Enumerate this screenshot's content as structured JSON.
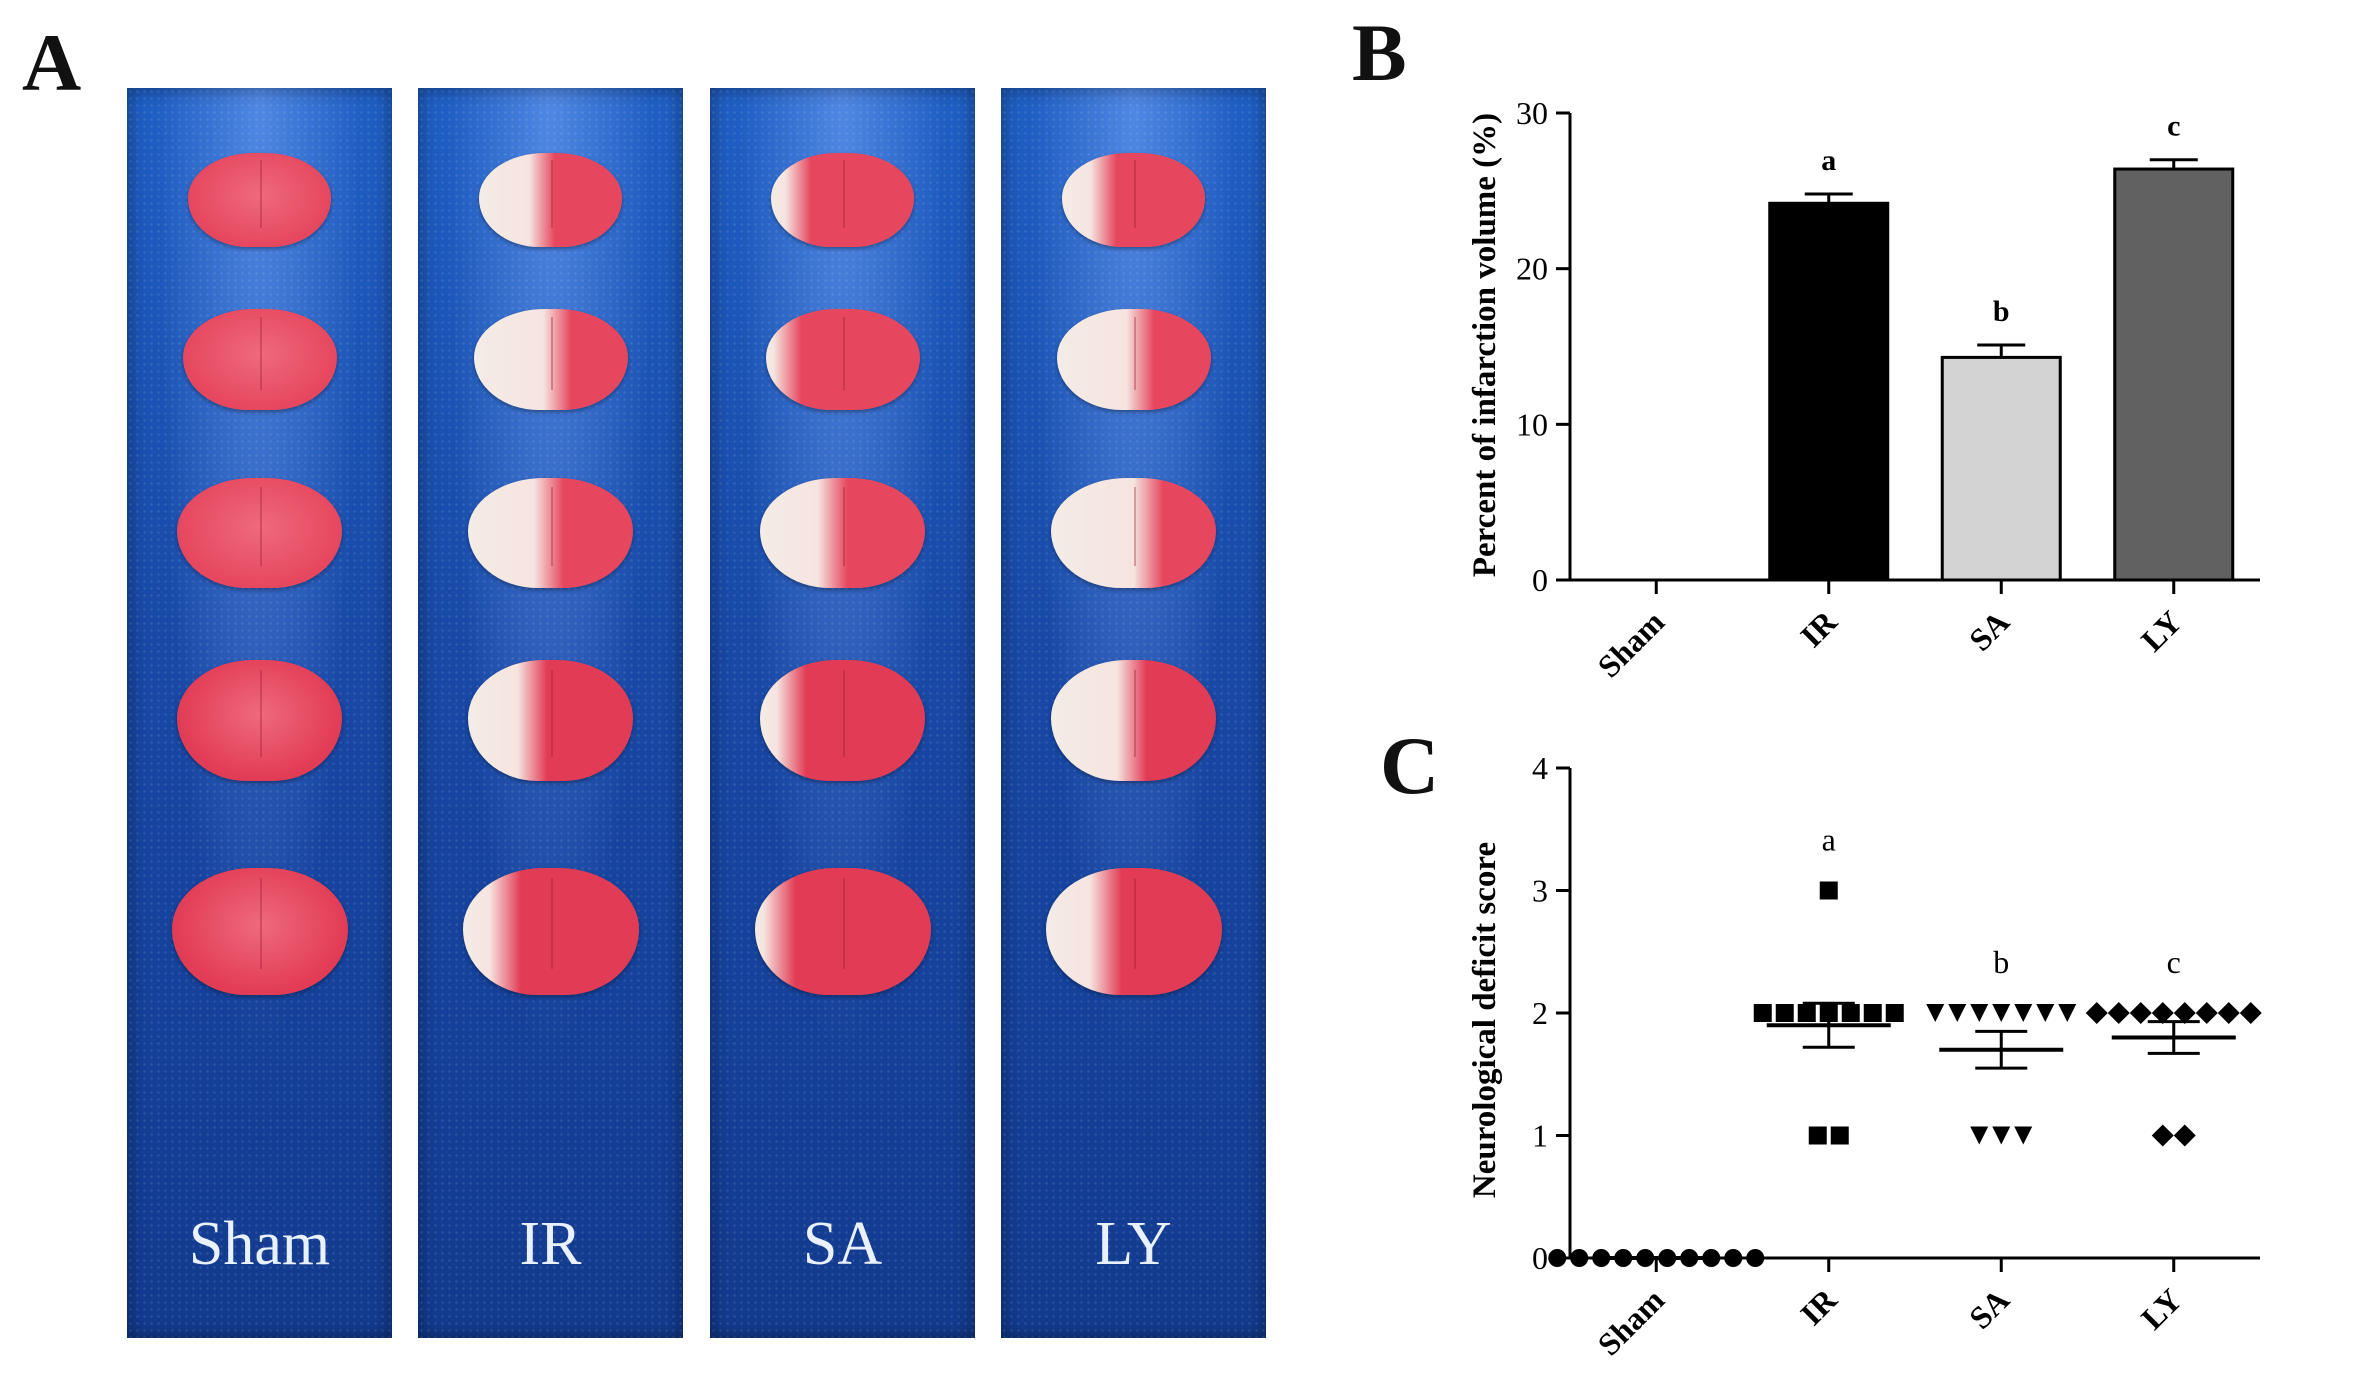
{
  "panels": {
    "a": {
      "letter": "A"
    },
    "b": {
      "letter": "B"
    },
    "c": {
      "letter": "C"
    }
  },
  "panel_a": {
    "strips": [
      {
        "label": "Sham"
      },
      {
        "label": "IR"
      },
      {
        "label": "SA"
      },
      {
        "label": "LY"
      }
    ]
  },
  "chart_data": [
    {
      "type": "bar",
      "panel": "B",
      "categories": [
        "Sham",
        "IR",
        "SA",
        "LY"
      ],
      "values": [
        0,
        24.2,
        14.3,
        26.4
      ],
      "errors": [
        0,
        0.6,
        0.8,
        0.6
      ],
      "significance": [
        "",
        "a",
        "b",
        "c"
      ],
      "bar_colors": [
        "#000000",
        "#000000",
        "#d3d3d3",
        "#616161"
      ],
      "ylabel": "Percent of infarction volume (%)",
      "xlabel": "",
      "ylim": [
        0,
        30
      ],
      "yticks": [
        "0",
        "10",
        "20",
        "30"
      ],
      "grid": false
    },
    {
      "type": "scatter",
      "panel": "C",
      "categories": [
        "Sham",
        "IR",
        "SA",
        "LY"
      ],
      "groups": [
        {
          "name": "Sham",
          "marker": "circle",
          "values": [
            0,
            0,
            0,
            0,
            0,
            0,
            0,
            0,
            0,
            0
          ],
          "mean": 0,
          "sem": 0,
          "significance": ""
        },
        {
          "name": "IR",
          "marker": "square",
          "values": [
            3,
            2,
            2,
            2,
            2,
            2,
            2,
            2,
            1,
            1
          ],
          "mean": 1.9,
          "sem": 0.18,
          "significance": "a"
        },
        {
          "name": "SA",
          "marker": "triangle-down",
          "values": [
            2,
            2,
            2,
            2,
            2,
            2,
            2,
            1,
            1,
            1
          ],
          "mean": 1.7,
          "sem": 0.15,
          "significance": "b"
        },
        {
          "name": "LY",
          "marker": "diamond",
          "values": [
            2,
            2,
            2,
            2,
            2,
            2,
            2,
            2,
            1,
            1
          ],
          "mean": 1.8,
          "sem": 0.13,
          "significance": "c"
        }
      ],
      "ylabel": "Neurological deficit score",
      "xlabel": "",
      "ylim": [
        0,
        4
      ],
      "yticks": [
        "0",
        "1",
        "2",
        "3",
        "4"
      ],
      "grid": false
    }
  ]
}
